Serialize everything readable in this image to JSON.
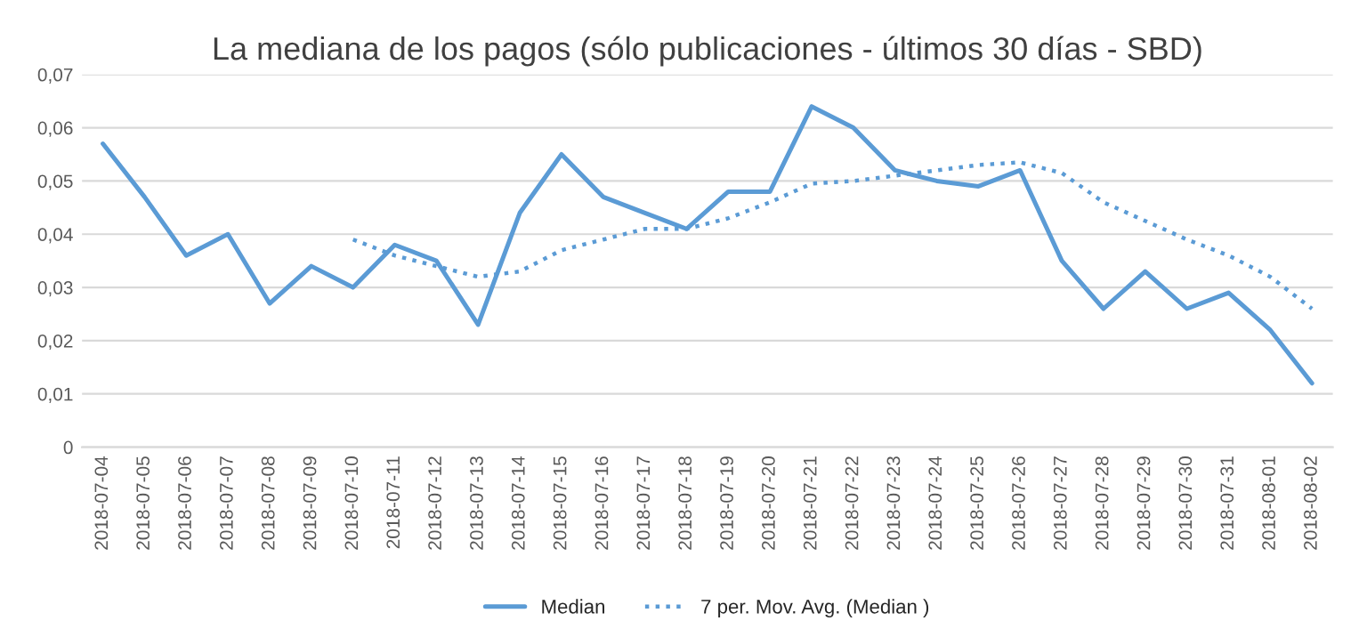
{
  "chart_data": {
    "type": "line",
    "title": "La mediana de los pagos (sólo publicaciones - últimos 30 días - SBD)",
    "categories": [
      "2018-07-04",
      "2018-07-05",
      "2018-07-06",
      "2018-07-07",
      "2018-07-08",
      "2018-07-09",
      "2018-07-10",
      "2018-07-11",
      "2018-07-12",
      "2018-07-13",
      "2018-07-14",
      "2018-07-15",
      "2018-07-16",
      "2018-07-17",
      "2018-07-18",
      "2018-07-19",
      "2018-07-20",
      "2018-07-21",
      "2018-07-22",
      "2018-07-23",
      "2018-07-24",
      "2018-07-25",
      "2018-07-26",
      "2018-07-27",
      "2018-07-28",
      "2018-07-29",
      "2018-07-30",
      "2018-07-31",
      "2018-08-01",
      "2018-08-02"
    ],
    "series": [
      {
        "name": "Median",
        "color": "#5b9bd5",
        "line_style": "solid",
        "values": [
          0.057,
          0.047,
          0.036,
          0.04,
          0.027,
          0.034,
          0.03,
          0.038,
          0.035,
          0.023,
          0.044,
          0.055,
          0.047,
          0.044,
          0.041,
          0.048,
          0.048,
          0.064,
          0.06,
          0.052,
          0.05,
          0.049,
          0.052,
          0.035,
          0.026,
          0.033,
          0.026,
          0.029,
          0.022,
          0.012
        ]
      },
      {
        "name": "7 per. Mov. Avg. (Median )",
        "color": "#5b9bd5",
        "line_style": "dotted",
        "values": [
          null,
          null,
          null,
          null,
          null,
          null,
          0.039,
          0.036,
          0.034,
          0.032,
          0.033,
          0.037,
          0.039,
          0.041,
          0.041,
          0.043,
          0.046,
          0.0495,
          0.05,
          0.051,
          0.052,
          0.053,
          0.0535,
          0.0515,
          0.046,
          0.0425,
          0.039,
          0.036,
          0.032,
          0.026
        ]
      }
    ],
    "ylim": [
      0,
      0.07
    ],
    "yticks": [
      0,
      {
        "value": 0.01,
        "label": "0,01"
      },
      {
        "value": 0.02,
        "label": "0,02"
      },
      {
        "value": 0.03,
        "label": "0,03"
      },
      {
        "value": 0.04,
        "label": "0,04"
      },
      {
        "value": 0.05,
        "label": "0,05"
      },
      {
        "value": 0.06,
        "label": "0,06"
      },
      {
        "value": 0.07,
        "label": "0,07"
      }
    ],
    "grid": "y",
    "legend": "bottom",
    "marker": "none"
  }
}
